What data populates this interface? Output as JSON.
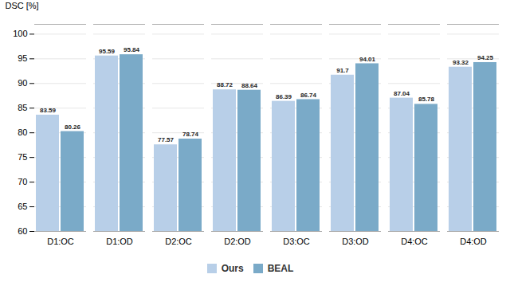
{
  "chart_data": {
    "type": "bar",
    "ylabel": "DSC [%]",
    "categories": [
      "D1:OC",
      "D1:OD",
      "D2:OC",
      "D2:OD",
      "D3:OC",
      "D3:OD",
      "D4:OC",
      "D4:OD"
    ],
    "series": [
      {
        "name": "Ours",
        "color": "#b8cfe8",
        "values": [
          83.59,
          95.59,
          77.57,
          88.72,
          86.39,
          91.7,
          87.04,
          93.32
        ]
      },
      {
        "name": "BEAL",
        "color": "#7aaac8",
        "values": [
          80.26,
          95.84,
          78.74,
          88.64,
          86.74,
          94.01,
          85.78,
          94.25
        ]
      }
    ],
    "ylim": [
      60,
      102
    ],
    "yticks": [
      60,
      65,
      70,
      75,
      80,
      85,
      90,
      95,
      100
    ],
    "grid": true,
    "data_labels": true,
    "legend": "bottom"
  }
}
